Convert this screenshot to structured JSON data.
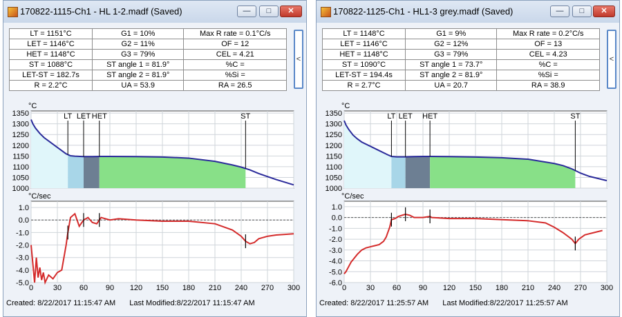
{
  "colors": {
    "temp_line": "#2a2a9a",
    "rate_line": "#d42a2a",
    "region_pre": "#e0f6fa",
    "region_lt_let": "#a8d6e8",
    "region_let_het": "#6d7f93",
    "region_het_st": "#88e088"
  },
  "windows": [
    {
      "title": "170822-1115-Ch1 - HL 1-2.madf (Saved)",
      "stats": [
        [
          "LT = 1151°C",
          "G1 = 10%",
          "Max R rate = 0.1°C/s"
        ],
        [
          "LET = 1146°C",
          "G2 = 11%",
          "OF = 12"
        ],
        [
          "HET = 1148°C",
          "G3 = 79%",
          "CEL = 4.21"
        ],
        [
          "ST = 1088°C",
          "ST angle 1 = 81.9°",
          "%C ="
        ],
        [
          "LET-ST = 182.7s",
          "ST angle 2 = 81.9°",
          "%Si ="
        ],
        [
          "R = 2.2°C",
          "UA = 53.9",
          "RA = 26.5"
        ]
      ],
      "side_tab": "<",
      "status": {
        "created": "Created: 8/22/2017 11:15:47 AM",
        "modified": "Last Modified:8/22/2017 11:15:47 AM"
      },
      "chart_data": [
        {
          "type": "line",
          "ylabel": "°C",
          "x": [
            0,
            2,
            5,
            10,
            15,
            20,
            30,
            40,
            45,
            50,
            60,
            70,
            80,
            90,
            120,
            150,
            180,
            210,
            230,
            240,
            250,
            260,
            280,
            300
          ],
          "series": [
            {
              "values": [
                1320,
                1300,
                1280,
                1255,
                1235,
                1220,
                1190,
                1160,
                1151,
                1149,
                1147,
                1147,
                1148,
                1148,
                1147,
                1145,
                1140,
                1125,
                1108,
                1098,
                1085,
                1068,
                1040,
                1015
              ]
            }
          ],
          "xlim": [
            0,
            300
          ],
          "ylim": [
            1000,
            1360
          ],
          "yticks": [
            1000,
            1050,
            1100,
            1150,
            1200,
            1250,
            1300,
            1350
          ],
          "xticks": [
            0,
            30,
            60,
            90,
            120,
            150,
            180,
            210,
            240,
            270,
            300
          ],
          "markers": [
            {
              "label": "LT",
              "x": 42
            },
            {
              "label": "LET",
              "x": 60
            },
            {
              "label": "HET",
              "x": 78
            },
            {
              "label": "ST",
              "x": 245
            }
          ],
          "grid": true
        },
        {
          "type": "line",
          "ylabel": "°C/sec",
          "x": [
            0,
            2,
            4,
            6,
            8,
            10,
            12,
            14,
            16,
            20,
            25,
            30,
            35,
            40,
            42,
            45,
            50,
            55,
            58,
            60,
            65,
            70,
            75,
            80,
            85,
            90,
            100,
            120,
            150,
            180,
            210,
            230,
            240,
            245,
            250,
            255,
            260,
            270,
            280,
            290,
            300
          ],
          "series": [
            {
              "values": [
                -2.0,
                -3.5,
                -5.0,
                -3.0,
                -4.6,
                -3.8,
                -4.8,
                -4.2,
                -5.0,
                -4.4,
                -4.7,
                -4.2,
                -4.0,
                -2.0,
                -1.0,
                0.2,
                0.5,
                -0.5,
                -0.2,
                0.0,
                0.2,
                -0.2,
                -0.3,
                0.2,
                0.1,
                0.0,
                0.1,
                0.0,
                -0.1,
                -0.1,
                -0.3,
                -0.8,
                -1.3,
                -1.7,
                -1.9,
                -1.8,
                -1.5,
                -1.3,
                -1.2,
                -1.15,
                -1.1
              ]
            }
          ],
          "xlim": [
            0,
            300
          ],
          "ylim": [
            -5.0,
            1.5
          ],
          "yticks": [
            -5.0,
            -4.0,
            -3.0,
            -2.0,
            -1.0,
            0.0,
            1.0
          ],
          "xticks": [
            0,
            30,
            60,
            90,
            120,
            150,
            180,
            210,
            240,
            270,
            300
          ],
          "markers": [
            42,
            60,
            78,
            245
          ],
          "grid": true
        }
      ]
    },
    {
      "title": "170822-1125-Ch1 - HL1-3 grey.madf (Saved)",
      "stats": [
        [
          "LT = 1148°C",
          "G1 = 9%",
          "Max R rate = 0.2°C/s"
        ],
        [
          "LET = 1146°C",
          "G2 = 12%",
          "OF = 13"
        ],
        [
          "HET = 1148°C",
          "G3 = 79%",
          "CEL = 4.23"
        ],
        [
          "ST = 1090°C",
          "ST angle 1 = 73.7°",
          "%C ="
        ],
        [
          "LET-ST = 194.4s",
          "ST angle 2 = 81.9°",
          "%Si ="
        ],
        [
          "R = 2.7°C",
          "UA = 20.7",
          "RA = 38.9"
        ]
      ],
      "side_tab": "<",
      "status": {
        "created": "Created: 8/22/2017 11:25:57 AM",
        "modified": "Last Modified:8/22/2017 11:25:57 AM"
      },
      "chart_data": [
        {
          "type": "line",
          "ylabel": "°C",
          "x": [
            0,
            2,
            5,
            10,
            15,
            20,
            30,
            40,
            50,
            54,
            60,
            70,
            80,
            90,
            100,
            120,
            150,
            180,
            210,
            240,
            250,
            260,
            270,
            280,
            300
          ],
          "series": [
            {
              "values": [
                1315,
                1295,
                1275,
                1248,
                1230,
                1215,
                1195,
                1175,
                1155,
                1148,
                1146,
                1146,
                1147,
                1148,
                1148,
                1147,
                1145,
                1142,
                1135,
                1115,
                1105,
                1090,
                1070,
                1055,
                1035
              ]
            }
          ],
          "xlim": [
            0,
            300
          ],
          "ylim": [
            1000,
            1360
          ],
          "yticks": [
            1000,
            1050,
            1100,
            1150,
            1200,
            1250,
            1300,
            1350
          ],
          "xticks": [
            0,
            30,
            60,
            90,
            120,
            150,
            180,
            210,
            240,
            270,
            300
          ],
          "markers": [
            {
              "label": "LT",
              "x": 54
            },
            {
              "label": "LET",
              "x": 70
            },
            {
              "label": "HET",
              "x": 98
            },
            {
              "label": "ST",
              "x": 264
            }
          ],
          "grid": true
        },
        {
          "type": "line",
          "ylabel": "°C/sec",
          "x": [
            0,
            2,
            4,
            6,
            8,
            10,
            15,
            20,
            25,
            30,
            35,
            40,
            45,
            48,
            52,
            54,
            58,
            62,
            66,
            70,
            75,
            80,
            90,
            98,
            100,
            120,
            150,
            180,
            210,
            230,
            240,
            250,
            260,
            264,
            268,
            275,
            285,
            295
          ],
          "series": [
            {
              "values": [
                -5.2,
                -5.0,
                -4.7,
                -4.4,
                -4.1,
                -3.9,
                -3.4,
                -3.0,
                -2.8,
                -2.7,
                -2.6,
                -2.5,
                -2.2,
                -1.8,
                -0.9,
                -0.2,
                -0.1,
                0.1,
                0.2,
                0.3,
                0.2,
                0.0,
                0.0,
                0.1,
                0.0,
                -0.1,
                -0.1,
                -0.2,
                -0.3,
                -0.5,
                -0.9,
                -1.4,
                -2.0,
                -2.4,
                -2.0,
                -1.6,
                -1.4,
                -1.2
              ]
            }
          ],
          "xlim": [
            0,
            300
          ],
          "ylim": [
            -6.0,
            1.5
          ],
          "yticks": [
            -6.0,
            -5.0,
            -4.0,
            -3.0,
            -2.0,
            -1.0,
            0.0,
            1.0
          ],
          "xticks": [
            0,
            30,
            60,
            90,
            120,
            150,
            180,
            210,
            240,
            270,
            300
          ],
          "markers": [
            54,
            70,
            98,
            264
          ],
          "grid": true
        }
      ]
    }
  ]
}
